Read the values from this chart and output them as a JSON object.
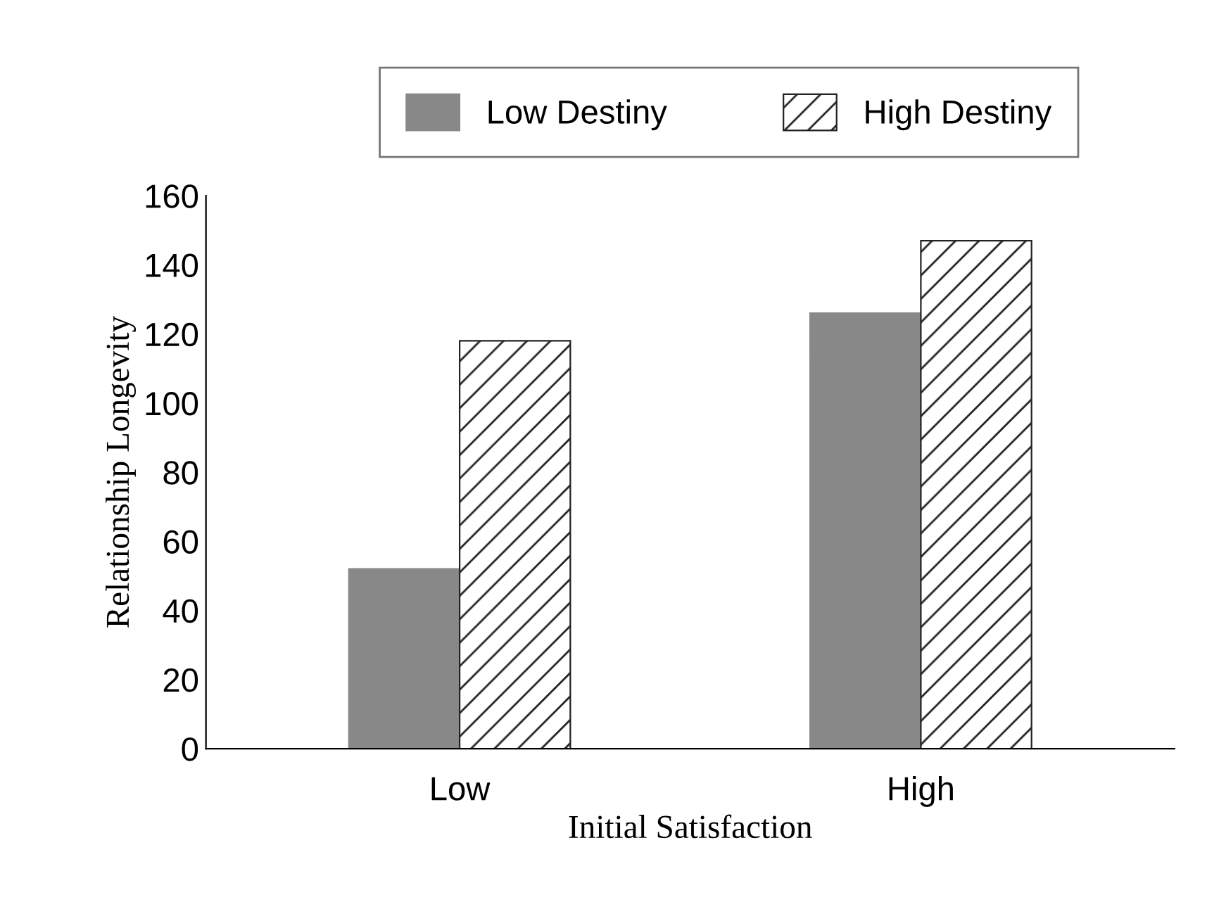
{
  "chart_data": {
    "type": "bar",
    "xlabel": "Initial Satisfaction",
    "ylabel": "Relationship Longevity",
    "categories": [
      "Low",
      "High"
    ],
    "series": [
      {
        "name": "Low Destiny",
        "color": "#888888",
        "values": [
          52,
          126
        ]
      },
      {
        "name": "High Destiny",
        "color": "#222222",
        "values": [
          118,
          147
        ]
      }
    ],
    "ylim": [
      0,
      160
    ],
    "yticks": [
      0,
      20,
      40,
      60,
      80,
      100,
      120,
      140,
      160
    ],
    "grid": false,
    "legend": "top"
  }
}
